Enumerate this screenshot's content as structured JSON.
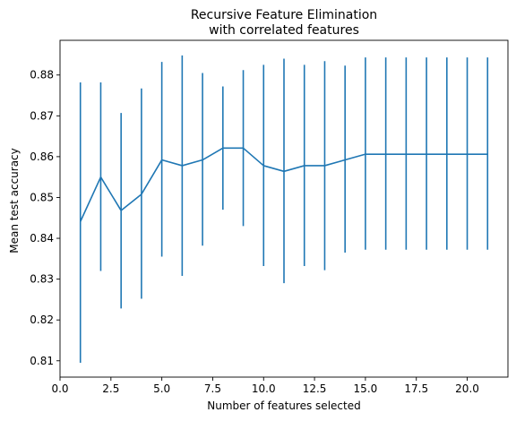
{
  "chart_data": {
    "type": "line",
    "title": [
      "Recursive Feature Elimination",
      "with correlated features"
    ],
    "xlabel": "Number of features selected",
    "ylabel": "Mean test accuracy",
    "xlim": [
      0.0,
      22.0
    ],
    "ylim": [
      0.806,
      0.8885
    ],
    "xticks": [
      0.0,
      2.5,
      5.0,
      7.5,
      10.0,
      12.5,
      15.0,
      17.5,
      20.0
    ],
    "xtick_labels": [
      "0.0",
      "2.5",
      "5.0",
      "7.5",
      "10.0",
      "12.5",
      "15.0",
      "17.5",
      "20.0"
    ],
    "yticks": [
      0.81,
      0.82,
      0.83,
      0.84,
      0.85,
      0.86,
      0.87,
      0.88
    ],
    "ytick_labels": [
      "0.81",
      "0.82",
      "0.83",
      "0.84",
      "0.85",
      "0.86",
      "0.87",
      "0.88"
    ],
    "grid": false,
    "color": "#1f77b4",
    "x": [
      1,
      2,
      3,
      4,
      5,
      6,
      7,
      8,
      9,
      10,
      11,
      12,
      13,
      14,
      15,
      16,
      17,
      18,
      19,
      20,
      21
    ],
    "y": [
      0.8441,
      0.855,
      0.8468,
      0.8508,
      0.8592,
      0.8578,
      0.8592,
      0.8621,
      0.8621,
      0.8578,
      0.8564,
      0.8578,
      0.8578,
      0.8592,
      0.8606,
      0.8606,
      0.8606,
      0.8606,
      0.8606,
      0.8606,
      0.8606
    ],
    "error_low": [
      0.8095,
      0.832,
      0.8228,
      0.8252,
      0.8355,
      0.8308,
      0.8382,
      0.847,
      0.843,
      0.8332,
      0.829,
      0.8332,
      0.8322,
      0.8365,
      0.8372,
      0.8372,
      0.8372,
      0.8372,
      0.8372,
      0.8372,
      0.8372
    ],
    "error_high": [
      0.8782,
      0.8782,
      0.8707,
      0.8767,
      0.8832,
      0.8848,
      0.8805,
      0.8772,
      0.8812,
      0.8825,
      0.884,
      0.8825,
      0.8834,
      0.8823,
      0.8843,
      0.8843,
      0.8843,
      0.8843,
      0.8843,
      0.8843,
      0.8843
    ]
  }
}
